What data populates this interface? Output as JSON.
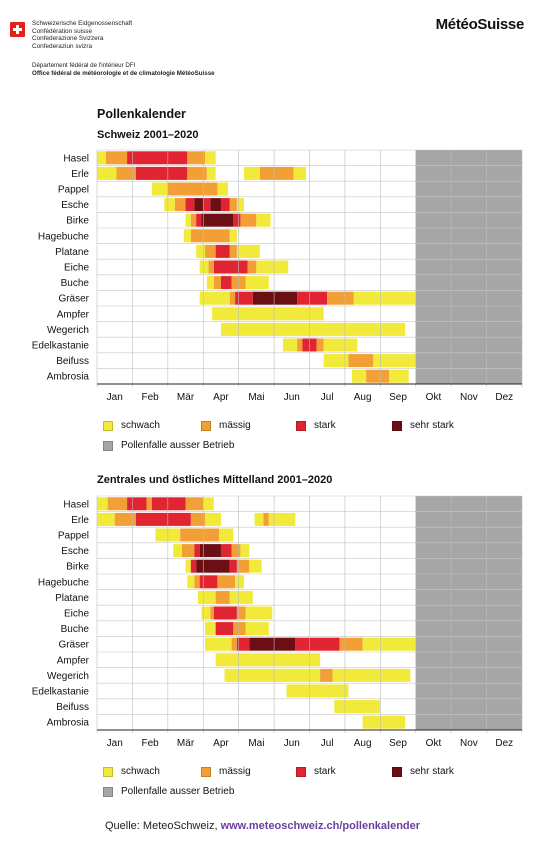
{
  "header": {
    "confederation": [
      "Schweizerische Eidgenossenschaft",
      "Confédération suisse",
      "Confederazione Svizzera",
      "Confederaziun svizra"
    ],
    "department": "Département fédéral de l'intérieur DFI",
    "office": "Office fédéral de météorologie et de climatologie MétéoSuisse",
    "brand": "MétéoSuisse"
  },
  "title": "Pollenkalender",
  "months": [
    "Jan",
    "Feb",
    "Mär",
    "Apr",
    "Mai",
    "Jun",
    "Jul",
    "Aug",
    "Sep",
    "Okt",
    "Nov",
    "Dez"
  ],
  "legend": {
    "schwach": "schwach",
    "maessig": "mässig",
    "stark": "stark",
    "sehr_stark": "sehr stark",
    "ausser_betrieb": "Pollenfalle ausser Betrieb"
  },
  "colors": {
    "schwach": "#f2ea3a",
    "maessig": "#f2a035",
    "stark": "#e02432",
    "sehr_stark": "#6b0f14",
    "ausser_betrieb": "#a6a6a6"
  },
  "source": {
    "prefix": "Quelle: MeteoSchweiz, ",
    "link": "www.meteoschweiz.ch/pollenkalender"
  },
  "chart_data": [
    {
      "type": "heatmap",
      "title": "Schweiz 2001–2020",
      "x_unit": "month (0 = 1 Jan, 12 = 31 Dez)",
      "grey_from": 9.0,
      "categories": [
        "Hasel",
        "Erle",
        "Pappel",
        "Esche",
        "Birke",
        "Hagebuche",
        "Platane",
        "Eiche",
        "Buche",
        "Gräser",
        "Ampfer",
        "Wegerich",
        "Edelkastanie",
        "Beifuss",
        "Ambrosia"
      ],
      "rows": [
        [
          [
            0.0,
            0.25,
            "schwach"
          ],
          [
            0.25,
            0.85,
            "maessig"
          ],
          [
            0.85,
            2.55,
            "stark"
          ],
          [
            2.55,
            3.05,
            "maessig"
          ],
          [
            3.05,
            3.35,
            "schwach"
          ]
        ],
        [
          [
            0.0,
            0.55,
            "schwach"
          ],
          [
            0.55,
            1.1,
            "maessig"
          ],
          [
            1.1,
            2.55,
            "stark"
          ],
          [
            2.55,
            3.1,
            "maessig"
          ],
          [
            3.1,
            3.35,
            "schwach"
          ],
          [
            4.15,
            4.6,
            "schwach"
          ],
          [
            4.6,
            5.55,
            "maessig"
          ],
          [
            5.55,
            5.9,
            "schwach"
          ]
        ],
        [
          [
            1.55,
            2.0,
            "schwach"
          ],
          [
            2.0,
            3.4,
            "maessig"
          ],
          [
            3.4,
            3.7,
            "schwach"
          ]
        ],
        [
          [
            1.9,
            2.2,
            "schwach"
          ],
          [
            2.2,
            2.5,
            "maessig"
          ],
          [
            2.5,
            2.75,
            "stark"
          ],
          [
            2.75,
            3.0,
            "sehr_stark"
          ],
          [
            3.0,
            3.2,
            "stark"
          ],
          [
            3.2,
            3.5,
            "sehr_stark"
          ],
          [
            3.5,
            3.75,
            "stark"
          ],
          [
            3.75,
            3.95,
            "maessig"
          ],
          [
            3.95,
            4.15,
            "schwach"
          ]
        ],
        [
          [
            2.5,
            2.65,
            "schwach"
          ],
          [
            2.65,
            2.8,
            "maessig"
          ],
          [
            2.8,
            2.95,
            "stark"
          ],
          [
            2.95,
            3.85,
            "sehr_stark"
          ],
          [
            3.85,
            4.05,
            "stark"
          ],
          [
            4.05,
            4.5,
            "maessig"
          ],
          [
            4.5,
            4.9,
            "schwach"
          ]
        ],
        [
          [
            2.45,
            2.65,
            "schwach"
          ],
          [
            2.65,
            3.75,
            "maessig"
          ],
          [
            3.75,
            3.95,
            "schwach"
          ]
        ],
        [
          [
            2.8,
            3.05,
            "schwach"
          ],
          [
            3.05,
            3.35,
            "maessig"
          ],
          [
            3.35,
            3.75,
            "stark"
          ],
          [
            3.75,
            3.95,
            "maessig"
          ],
          [
            3.95,
            4.6,
            "schwach"
          ]
        ],
        [
          [
            2.9,
            3.15,
            "schwach"
          ],
          [
            3.15,
            3.3,
            "maessig"
          ],
          [
            3.3,
            4.25,
            "stark"
          ],
          [
            4.25,
            4.5,
            "maessig"
          ],
          [
            4.5,
            5.4,
            "schwach"
          ]
        ],
        [
          [
            3.1,
            3.3,
            "schwach"
          ],
          [
            3.3,
            3.5,
            "maessig"
          ],
          [
            3.5,
            3.8,
            "stark"
          ],
          [
            3.8,
            4.2,
            "maessig"
          ],
          [
            4.2,
            4.85,
            "schwach"
          ]
        ],
        [
          [
            2.9,
            3.75,
            "schwach"
          ],
          [
            3.75,
            3.9,
            "maessig"
          ],
          [
            3.9,
            4.4,
            "stark"
          ],
          [
            4.4,
            5.65,
            "sehr_stark"
          ],
          [
            5.65,
            6.5,
            "stark"
          ],
          [
            6.5,
            7.25,
            "maessig"
          ],
          [
            7.25,
            9.0,
            "schwach"
          ]
        ],
        [
          [
            3.25,
            6.4,
            "schwach"
          ]
        ],
        [
          [
            3.5,
            8.7,
            "schwach"
          ]
        ],
        [
          [
            5.25,
            5.65,
            "schwach"
          ],
          [
            5.65,
            5.8,
            "maessig"
          ],
          [
            5.8,
            6.2,
            "stark"
          ],
          [
            6.2,
            6.4,
            "maessig"
          ],
          [
            6.4,
            7.35,
            "schwach"
          ]
        ],
        [
          [
            6.4,
            7.1,
            "schwach"
          ],
          [
            7.1,
            7.8,
            "maessig"
          ],
          [
            7.8,
            9.0,
            "schwach"
          ]
        ],
        [
          [
            7.2,
            7.6,
            "schwach"
          ],
          [
            7.6,
            8.25,
            "maessig"
          ],
          [
            8.25,
            8.8,
            "schwach"
          ]
        ]
      ]
    },
    {
      "type": "heatmap",
      "title": "Zentrales und östliches Mittelland 2001–2020",
      "x_unit": "month (0 = 1 Jan, 12 = 31 Dez)",
      "grey_from": 9.0,
      "categories": [
        "Hasel",
        "Erle",
        "Pappel",
        "Esche",
        "Birke",
        "Hagebuche",
        "Platane",
        "Eiche",
        "Buche",
        "Gräser",
        "Ampfer",
        "Wegerich",
        "Edelkastanie",
        "Beifuss",
        "Ambrosia"
      ],
      "rows": [
        [
          [
            0.0,
            0.3,
            "schwach"
          ],
          [
            0.3,
            0.85,
            "maessig"
          ],
          [
            0.85,
            1.4,
            "stark"
          ],
          [
            1.4,
            1.55,
            "maessig"
          ],
          [
            1.55,
            2.5,
            "stark"
          ],
          [
            2.5,
            3.0,
            "maessig"
          ],
          [
            3.0,
            3.3,
            "schwach"
          ]
        ],
        [
          [
            0.0,
            0.5,
            "schwach"
          ],
          [
            0.5,
            1.1,
            "maessig"
          ],
          [
            1.1,
            2.65,
            "stark"
          ],
          [
            2.65,
            3.05,
            "maessig"
          ],
          [
            3.05,
            3.5,
            "schwach"
          ],
          [
            4.45,
            4.7,
            "schwach"
          ],
          [
            4.7,
            4.85,
            "maessig"
          ],
          [
            4.85,
            5.6,
            "schwach"
          ]
        ],
        [
          [
            1.65,
            2.35,
            "schwach"
          ],
          [
            2.35,
            3.45,
            "maessig"
          ],
          [
            3.45,
            3.85,
            "schwach"
          ]
        ],
        [
          [
            2.15,
            2.4,
            "schwach"
          ],
          [
            2.4,
            2.75,
            "maessig"
          ],
          [
            2.75,
            2.9,
            "stark"
          ],
          [
            2.9,
            3.5,
            "sehr_stark"
          ],
          [
            3.5,
            3.8,
            "stark"
          ],
          [
            3.8,
            4.05,
            "maessig"
          ],
          [
            4.05,
            4.3,
            "schwach"
          ]
        ],
        [
          [
            2.5,
            2.65,
            "schwach"
          ],
          [
            2.65,
            2.8,
            "stark"
          ],
          [
            2.8,
            3.75,
            "sehr_stark"
          ],
          [
            3.75,
            3.95,
            "stark"
          ],
          [
            3.95,
            4.3,
            "maessig"
          ],
          [
            4.3,
            4.65,
            "schwach"
          ]
        ],
        [
          [
            2.55,
            2.75,
            "schwach"
          ],
          [
            2.75,
            2.9,
            "maessig"
          ],
          [
            2.9,
            3.4,
            "stark"
          ],
          [
            3.4,
            3.9,
            "maessig"
          ],
          [
            3.9,
            4.15,
            "schwach"
          ]
        ],
        [
          [
            2.85,
            3.35,
            "schwach"
          ],
          [
            3.35,
            3.75,
            "maessig"
          ],
          [
            3.75,
            4.4,
            "schwach"
          ]
        ],
        [
          [
            2.95,
            3.2,
            "schwach"
          ],
          [
            3.2,
            3.3,
            "maessig"
          ],
          [
            3.3,
            3.95,
            "stark"
          ],
          [
            3.95,
            4.2,
            "maessig"
          ],
          [
            4.2,
            4.95,
            "schwach"
          ]
        ],
        [
          [
            3.05,
            3.35,
            "schwach"
          ],
          [
            3.35,
            3.85,
            "stark"
          ],
          [
            3.85,
            4.2,
            "maessig"
          ],
          [
            4.2,
            4.85,
            "schwach"
          ]
        ],
        [
          [
            3.05,
            3.8,
            "schwach"
          ],
          [
            3.8,
            3.95,
            "maessig"
          ],
          [
            3.95,
            4.3,
            "stark"
          ],
          [
            4.3,
            5.6,
            "sehr_stark"
          ],
          [
            5.6,
            6.85,
            "stark"
          ],
          [
            6.85,
            7.5,
            "maessig"
          ],
          [
            7.5,
            9.0,
            "schwach"
          ]
        ],
        [
          [
            3.35,
            6.3,
            "schwach"
          ]
        ],
        [
          [
            3.6,
            6.3,
            "schwach"
          ],
          [
            6.3,
            6.65,
            "maessig"
          ],
          [
            6.65,
            8.85,
            "schwach"
          ]
        ],
        [
          [
            5.35,
            7.1,
            "schwach"
          ]
        ],
        [
          [
            6.7,
            8.0,
            "schwach"
          ]
        ],
        [
          [
            7.5,
            8.7,
            "schwach"
          ]
        ]
      ]
    }
  ]
}
